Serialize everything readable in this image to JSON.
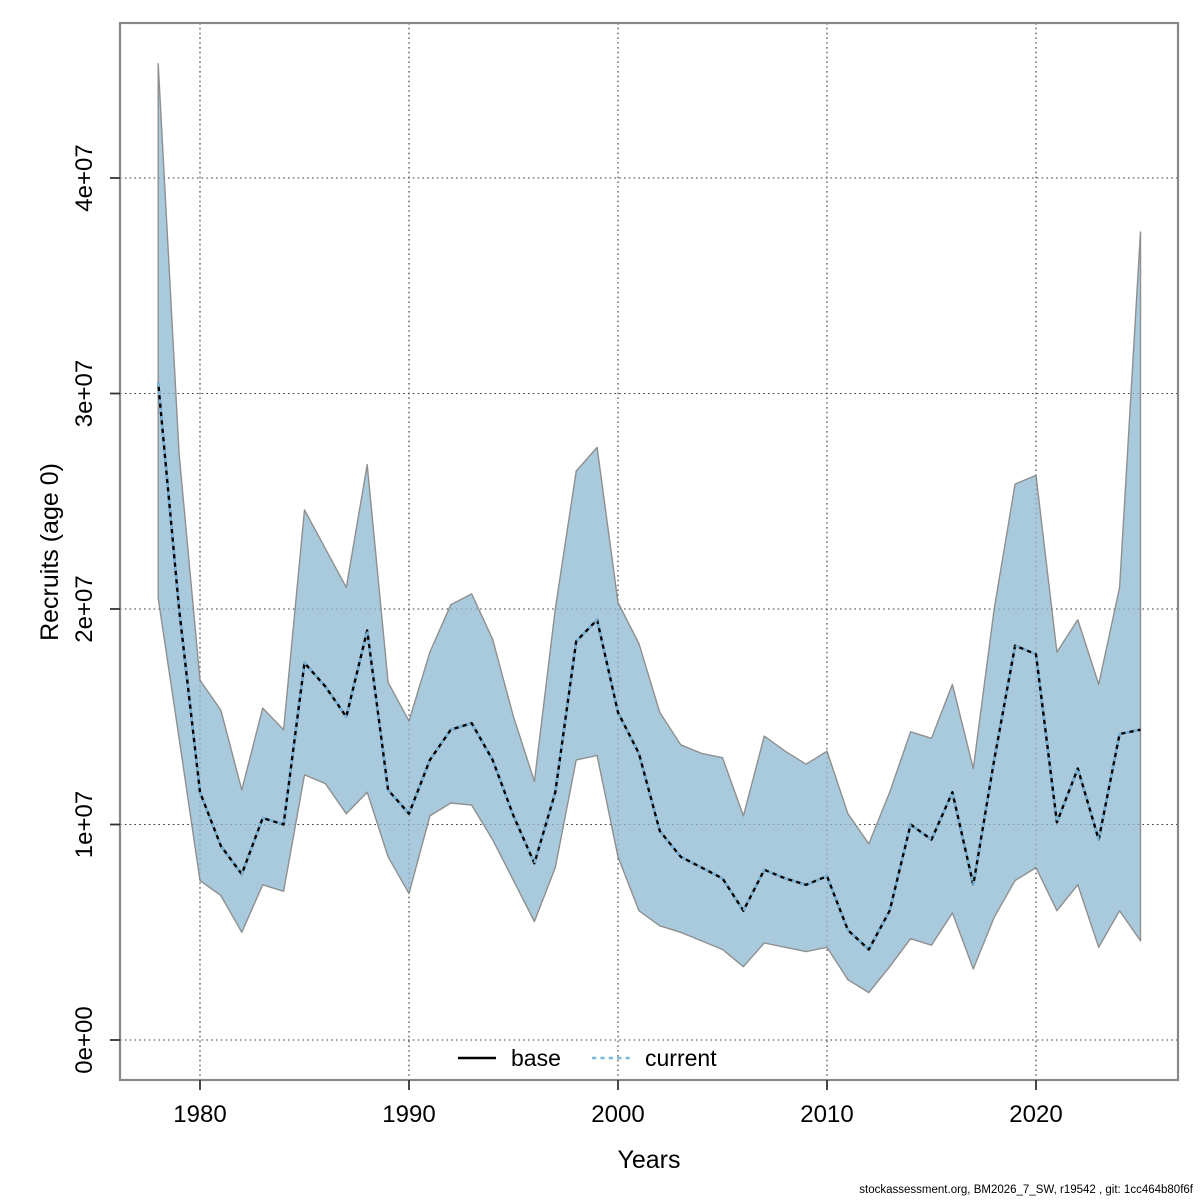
{
  "figure": {
    "footer": "stockassessment.org, BM2026_7_SW, r19542 , git: 1cc464b80f6f"
  },
  "colors": {
    "band_fill": "#A9CADD",
    "band_stroke": "#8F8F8F",
    "base_line": "#000000",
    "current_line": "#7CB7D9",
    "grid": "#404040",
    "border": "#888888",
    "tick": "#333333",
    "footer_text": "#111111"
  },
  "chart_data": {
    "type": "area",
    "title": "",
    "xlabel": "Years",
    "ylabel": "Recruits (age 0)",
    "grid": true,
    "legend_position": "bottom-center",
    "xlim": [
      1976.1,
      2026.9
    ],
    "ylim": [
      -1860000,
      47160000
    ],
    "x_ticks": [
      1980,
      1990,
      2000,
      2010,
      2020
    ],
    "y_ticks": [
      {
        "value": 0,
        "label": "0e+00"
      },
      {
        "value": 10000000,
        "label": "1e+07"
      },
      {
        "value": 20000000,
        "label": "2e+07"
      },
      {
        "value": 30000000,
        "label": "3e+07"
      },
      {
        "value": 40000000,
        "label": "4e+07"
      }
    ],
    "legend": [
      {
        "label": "base",
        "style": "solid",
        "color": "#000000"
      },
      {
        "label": "current",
        "style": "dotted",
        "color": "#7CB7D9"
      }
    ],
    "x": [
      1978,
      1979,
      1980,
      1981,
      1982,
      1983,
      1984,
      1985,
      1986,
      1987,
      1988,
      1989,
      1990,
      1991,
      1992,
      1993,
      1994,
      1995,
      1996,
      1997,
      1998,
      1999,
      2000,
      2001,
      2002,
      2003,
      2004,
      2005,
      2006,
      2007,
      2008,
      2009,
      2010,
      2011,
      2012,
      2013,
      2014,
      2015,
      2016,
      2017,
      2018,
      2019,
      2020,
      2021,
      2022,
      2023,
      2024,
      2025
    ],
    "series": [
      {
        "name": "median (base = current, lines coincide)",
        "values": [
          30500000,
          20000000,
          11500000,
          9000000,
          7700000,
          10300000,
          10000000,
          17500000,
          16400000,
          15000000,
          19000000,
          11600000,
          10500000,
          13000000,
          14400000,
          14700000,
          13000000,
          10400000,
          8200000,
          11500000,
          18500000,
          19500000,
          15200000,
          13300000,
          9700000,
          8500000,
          8000000,
          7500000,
          6000000,
          7900000,
          7500000,
          7200000,
          7600000,
          5100000,
          4200000,
          6000000,
          10000000,
          9300000,
          11500000,
          7200000,
          13000000,
          18300000,
          17900000,
          10100000,
          12600000,
          9300000,
          14200000,
          14400000
        ]
      },
      {
        "name": "ci_lower",
        "values": [
          20500000,
          14000000,
          7400000,
          6700000,
          5000000,
          7200000,
          6900000,
          12300000,
          11900000,
          10500000,
          11500000,
          8500000,
          6800000,
          10400000,
          11000000,
          10900000,
          9300000,
          7400000,
          5500000,
          8000000,
          13000000,
          13200000,
          8500000,
          6000000,
          5300000,
          5000000,
          4600000,
          4200000,
          3400000,
          4500000,
          4300000,
          4100000,
          4300000,
          2800000,
          2200000,
          3400000,
          4700000,
          4400000,
          5900000,
          3300000,
          5700000,
          7400000,
          8000000,
          6000000,
          7200000,
          4300000,
          6000000,
          4600000
        ]
      },
      {
        "name": "ci_upper",
        "values": [
          45300000,
          27200000,
          16700000,
          15300000,
          11600000,
          15400000,
          14400000,
          24600000,
          22800000,
          21000000,
          26700000,
          16600000,
          14800000,
          18000000,
          20200000,
          20700000,
          18600000,
          15000000,
          12000000,
          20000000,
          26400000,
          27500000,
          20300000,
          18400000,
          15200000,
          13700000,
          13300000,
          13100000,
          10400000,
          14100000,
          13400000,
          12800000,
          13400000,
          10500000,
          9100000,
          11500000,
          14300000,
          14000000,
          16500000,
          12600000,
          20000000,
          25800000,
          26200000,
          18000000,
          19500000,
          16500000,
          21000000,
          37500000
        ]
      }
    ]
  }
}
